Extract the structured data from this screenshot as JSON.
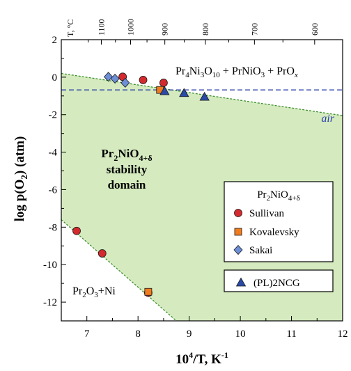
{
  "chart_data": {
    "type": "scatter",
    "title": "",
    "xlabel": "10⁴/T, K⁻¹",
    "ylabel": "log p(O₂) (atm)",
    "xlim": [
      6.5,
      12
    ],
    "ylim": [
      -13,
      2
    ],
    "x_ticks": [
      "7",
      "8",
      "9",
      "10",
      "11",
      "12"
    ],
    "y_ticks": [
      "2",
      "0",
      "-2",
      "-4",
      "-6",
      "-8",
      "-10",
      "-12"
    ],
    "top_axis": {
      "unit_label": "T, °C",
      "ticks": [
        {
          "label": "1100",
          "celsius": 1100
        },
        {
          "label": "1000",
          "celsius": 1000
        },
        {
          "label": "900",
          "celsius": 900
        },
        {
          "label": "800",
          "celsius": 800
        },
        {
          "label": "700",
          "celsius": 700
        },
        {
          "label": "600",
          "celsius": 600
        }
      ]
    },
    "grid": false,
    "stability_region": {
      "upper_boundary": [
        [
          6.5,
          0.2
        ],
        [
          12,
          -2.05
        ]
      ],
      "lower_boundary": [
        [
          6.5,
          -7.6
        ],
        [
          8.75,
          -13
        ]
      ],
      "fill_color": "#d5ebbf",
      "line_color": "#3f8f2f"
    },
    "air_line": {
      "y": -0.68,
      "label": "air",
      "color": "#2b3fa8"
    },
    "annotations": {
      "upper_phase": {
        "main": "Pr",
        "s1": "4",
        "m2": "Ni",
        "s2": "3",
        "m3": "O",
        "s3": "10",
        "m4": " + PrNiO",
        "s4": "3",
        "m5": " + PrO",
        "s5": "x"
      },
      "domain_line1": {
        "main": "Pr",
        "s1": "2",
        "m2": "NiO",
        "s2": "4+δ"
      },
      "domain_line2": "stability",
      "domain_line3": "domain",
      "lower_phase": {
        "main": "Pr",
        "s1": "2",
        "m2": "O",
        "s2": "3",
        "m3": "+Ni"
      }
    },
    "legend": {
      "placement": "right",
      "title": {
        "main": "Pr",
        "s1": "2",
        "m2": "NiO",
        "s2": "4+δ"
      }
    },
    "series": [
      {
        "name": "Sullivan",
        "marker": "circle",
        "color": "#d42a2f",
        "points": [
          [
            7.7,
            0.02
          ],
          [
            8.1,
            -0.15
          ],
          [
            8.5,
            -0.3
          ],
          [
            6.8,
            -8.2
          ],
          [
            7.3,
            -9.4
          ],
          [
            8.2,
            -11.5
          ]
        ]
      },
      {
        "name": "Kovalevsky",
        "marker": "square",
        "color": "#f07c1e",
        "points": [
          [
            8.43,
            -0.68
          ],
          [
            8.2,
            -11.45
          ]
        ]
      },
      {
        "name": "Sakai",
        "marker": "diamond",
        "color": "#6c8fd6",
        "points": [
          [
            7.42,
            0.02
          ],
          [
            7.55,
            -0.08
          ],
          [
            7.75,
            -0.3
          ]
        ]
      },
      {
        "name": "(PL)2NCG",
        "marker": "triangle",
        "color": "#2b4aa8",
        "points": [
          [
            8.52,
            -0.75
          ],
          [
            8.9,
            -0.85
          ],
          [
            9.3,
            -1.05
          ]
        ]
      }
    ]
  }
}
